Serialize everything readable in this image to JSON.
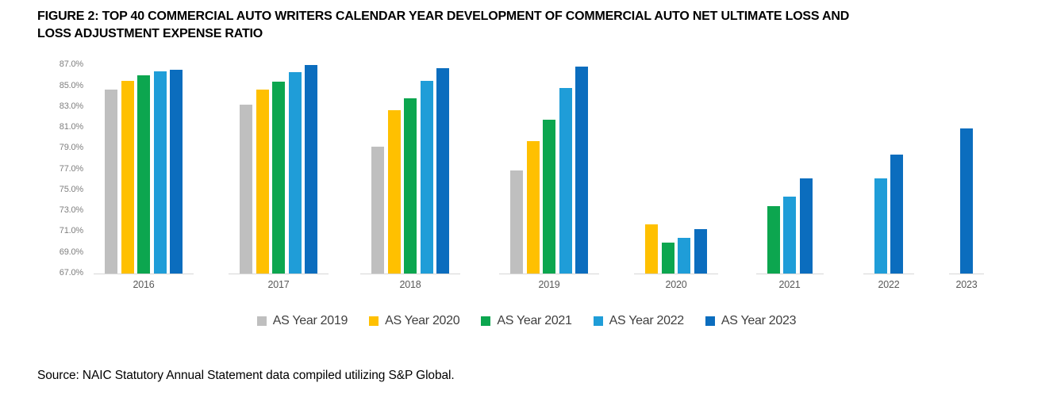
{
  "figure": {
    "title_line1": "FIGURE 2: TOP 40 COMMERCIAL AUTO WRITERS CALENDAR YEAR DEVELOPMENT OF COMMERCIAL AUTO NET ULTIMATE LOSS AND",
    "title_line2": "LOSS ADJUSTMENT EXPENSE RATIO"
  },
  "source": "Source: NAIC Statutory Annual Statement data compiled utilizing S&P Global.",
  "chart_data": {
    "type": "bar",
    "title": "FIGURE 2: TOP 40 COMMERCIAL AUTO WRITERS CALENDAR YEAR DEVELOPMENT OF COMMERCIAL AUTO NET ULTIMATE LOSS AND LOSS ADJUSTMENT EXPENSE RATIO",
    "categories": [
      "2016",
      "2017",
      "2018",
      "2019",
      "2020",
      "2021",
      "2022",
      "2023"
    ],
    "series": [
      {
        "name": "AS Year 2019",
        "color": "#BFBFBF",
        "values": [
          84.7,
          83.2,
          79.2,
          76.9,
          null,
          null,
          null,
          null
        ]
      },
      {
        "name": "AS Year 2020",
        "color": "#FFC000",
        "values": [
          85.5,
          84.7,
          82.7,
          79.7,
          71.7,
          null,
          null,
          null
        ]
      },
      {
        "name": "AS Year 2021",
        "color": "#0CA64F",
        "values": [
          86.0,
          85.4,
          83.8,
          81.8,
          70.0,
          73.5,
          null,
          null
        ]
      },
      {
        "name": "AS Year 2022",
        "color": "#1F9DD8",
        "values": [
          86.4,
          86.3,
          85.5,
          84.8,
          70.4,
          74.4,
          76.1,
          null
        ]
      },
      {
        "name": "AS Year 2023",
        "color": "#0B6DBE",
        "values": [
          86.6,
          87.0,
          86.7,
          86.9,
          71.3,
          76.1,
          78.4,
          80.9
        ]
      }
    ],
    "ylim": [
      67,
      87
    ],
    "ytick_step": 2,
    "ytick_suffix": "%",
    "grid": false,
    "legend_position": "bottom"
  }
}
